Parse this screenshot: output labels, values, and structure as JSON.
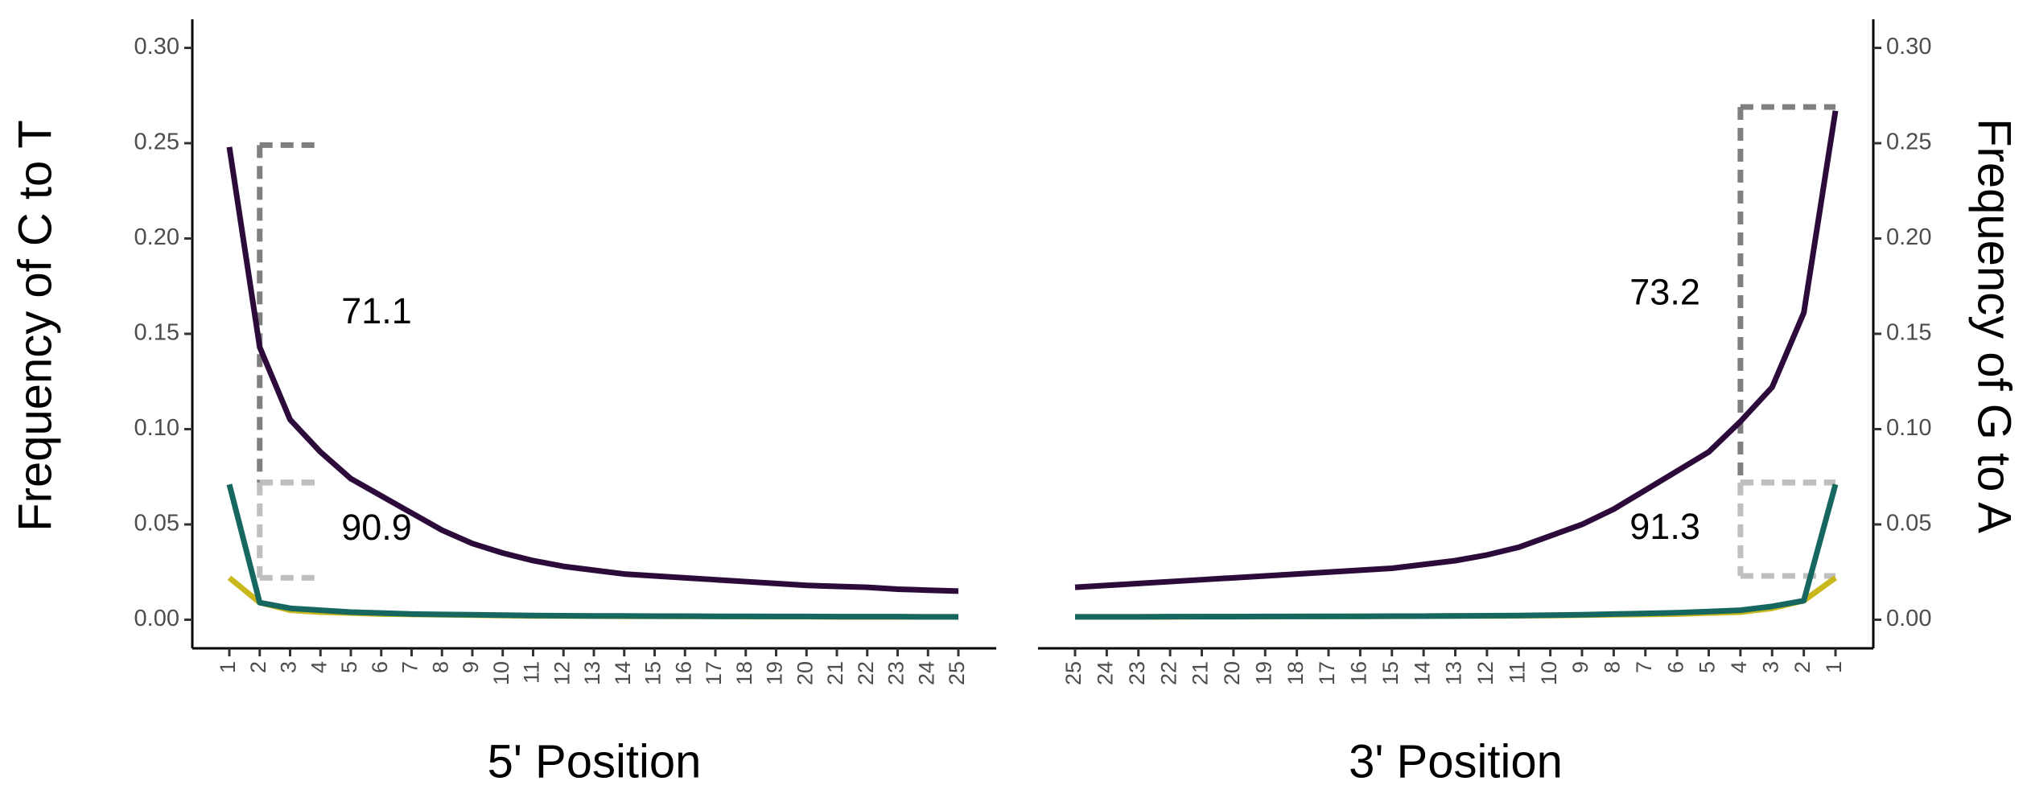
{
  "chart_data": [
    {
      "type": "line",
      "xlabel": "5' Position",
      "ylabel": "Frequency of C to T",
      "yaxis_side": "left",
      "categories": [
        "1",
        "2",
        "3",
        "4",
        "5",
        "6",
        "7",
        "8",
        "9",
        "10",
        "11",
        "12",
        "13",
        "14",
        "15",
        "16",
        "17",
        "18",
        "19",
        "20",
        "21",
        "22",
        "23",
        "24",
        "25"
      ],
      "series": [
        {
          "color": "#c9b81c",
          "values": [
            0.022,
            0.009,
            0.005,
            0.004,
            0.0035,
            0.003,
            0.0028,
            0.0026,
            0.0024,
            0.0022,
            0.002,
            0.002,
            0.0019,
            0.0018,
            0.0018,
            0.0017,
            0.0017,
            0.0016,
            0.0016,
            0.0016,
            0.0015,
            0.0015,
            0.0015,
            0.0015,
            0.0015
          ]
        },
        {
          "color": "#15675f",
          "values": [
            0.071,
            0.009,
            0.006,
            0.005,
            0.004,
            0.0035,
            0.003,
            0.0028,
            0.0026,
            0.0024,
            0.0022,
            0.0021,
            0.002,
            0.002,
            0.0019,
            0.0019,
            0.0018,
            0.0018,
            0.0017,
            0.0017,
            0.0016,
            0.0016,
            0.0016,
            0.0015,
            0.0015
          ]
        },
        {
          "color": "#2c0b3b",
          "values": [
            0.248,
            0.143,
            0.105,
            0.088,
            0.074,
            0.065,
            0.056,
            0.047,
            0.04,
            0.035,
            0.031,
            0.028,
            0.026,
            0.024,
            0.023,
            0.022,
            0.021,
            0.02,
            0.019,
            0.018,
            0.0175,
            0.017,
            0.016,
            0.0155,
            0.015
          ]
        }
      ],
      "annotations": [
        {
          "text": "71.1",
          "x_from": "2",
          "x_to": "4",
          "ymin": 0.072,
          "ymax": 0.249,
          "color": "#7f7f7f"
        },
        {
          "text": "90.9",
          "x_from": "2",
          "x_to": "4",
          "ymin": 0.022,
          "ymax": 0.072,
          "color": "#bfbfbf"
        }
      ],
      "ylim": [
        -0.015,
        0.315
      ],
      "yticks": [
        {
          "value": 0,
          "label": "0.00"
        },
        {
          "value": 0.05,
          "label": "0.05"
        },
        {
          "value": 0.1,
          "label": "0.10"
        },
        {
          "value": 0.15,
          "label": "0.15"
        },
        {
          "value": 0.2,
          "label": "0.20"
        },
        {
          "value": 0.25,
          "label": "0.25"
        },
        {
          "value": 0.3,
          "label": "0.30"
        }
      ]
    },
    {
      "type": "line",
      "xlabel": "3' Position",
      "ylabel": "Frequency of G to A",
      "yaxis_side": "right",
      "categories": [
        "25",
        "24",
        "23",
        "22",
        "21",
        "20",
        "19",
        "18",
        "17",
        "16",
        "15",
        "14",
        "13",
        "12",
        "11",
        "10",
        "9",
        "8",
        "7",
        "6",
        "5",
        "4",
        "3",
        "2",
        "1"
      ],
      "series": [
        {
          "color": "#c9b81c",
          "values": [
            0.0015,
            0.0015,
            0.0015,
            0.0015,
            0.0016,
            0.0016,
            0.0016,
            0.0017,
            0.0017,
            0.0018,
            0.0018,
            0.0019,
            0.002,
            0.002,
            0.0021,
            0.0022,
            0.0024,
            0.0026,
            0.0028,
            0.003,
            0.0035,
            0.004,
            0.006,
            0.01,
            0.022
          ]
        },
        {
          "color": "#15675f",
          "values": [
            0.0015,
            0.0015,
            0.0015,
            0.0016,
            0.0016,
            0.0016,
            0.0017,
            0.0017,
            0.0018,
            0.0018,
            0.0019,
            0.0019,
            0.002,
            0.0021,
            0.0022,
            0.0024,
            0.0026,
            0.003,
            0.0033,
            0.0037,
            0.0043,
            0.005,
            0.007,
            0.01,
            0.071
          ]
        },
        {
          "color": "#2c0b3b",
          "values": [
            0.017,
            0.018,
            0.019,
            0.02,
            0.021,
            0.022,
            0.023,
            0.024,
            0.025,
            0.026,
            0.027,
            0.029,
            0.031,
            0.034,
            0.038,
            0.044,
            0.05,
            0.058,
            0.068,
            0.078,
            0.088,
            0.104,
            0.122,
            0.161,
            0.267
          ]
        }
      ],
      "annotations": [
        {
          "text": "73.2",
          "x_from": "4",
          "x_to": "1",
          "ymin": 0.072,
          "ymax": 0.269,
          "color": "#7f7f7f"
        },
        {
          "text": "91.3",
          "x_from": "4",
          "x_to": "1",
          "ymin": 0.023,
          "ymax": 0.072,
          "color": "#bfbfbf"
        }
      ],
      "ylim": [
        -0.015,
        0.315
      ],
      "yticks": [
        {
          "value": 0,
          "label": "0.00"
        },
        {
          "value": 0.05,
          "label": "0.05"
        },
        {
          "value": 0.1,
          "label": "0.10"
        },
        {
          "value": 0.15,
          "label": "0.15"
        },
        {
          "value": 0.2,
          "label": "0.20"
        },
        {
          "value": 0.25,
          "label": "0.25"
        },
        {
          "value": 0.3,
          "label": "0.30"
        }
      ]
    }
  ]
}
